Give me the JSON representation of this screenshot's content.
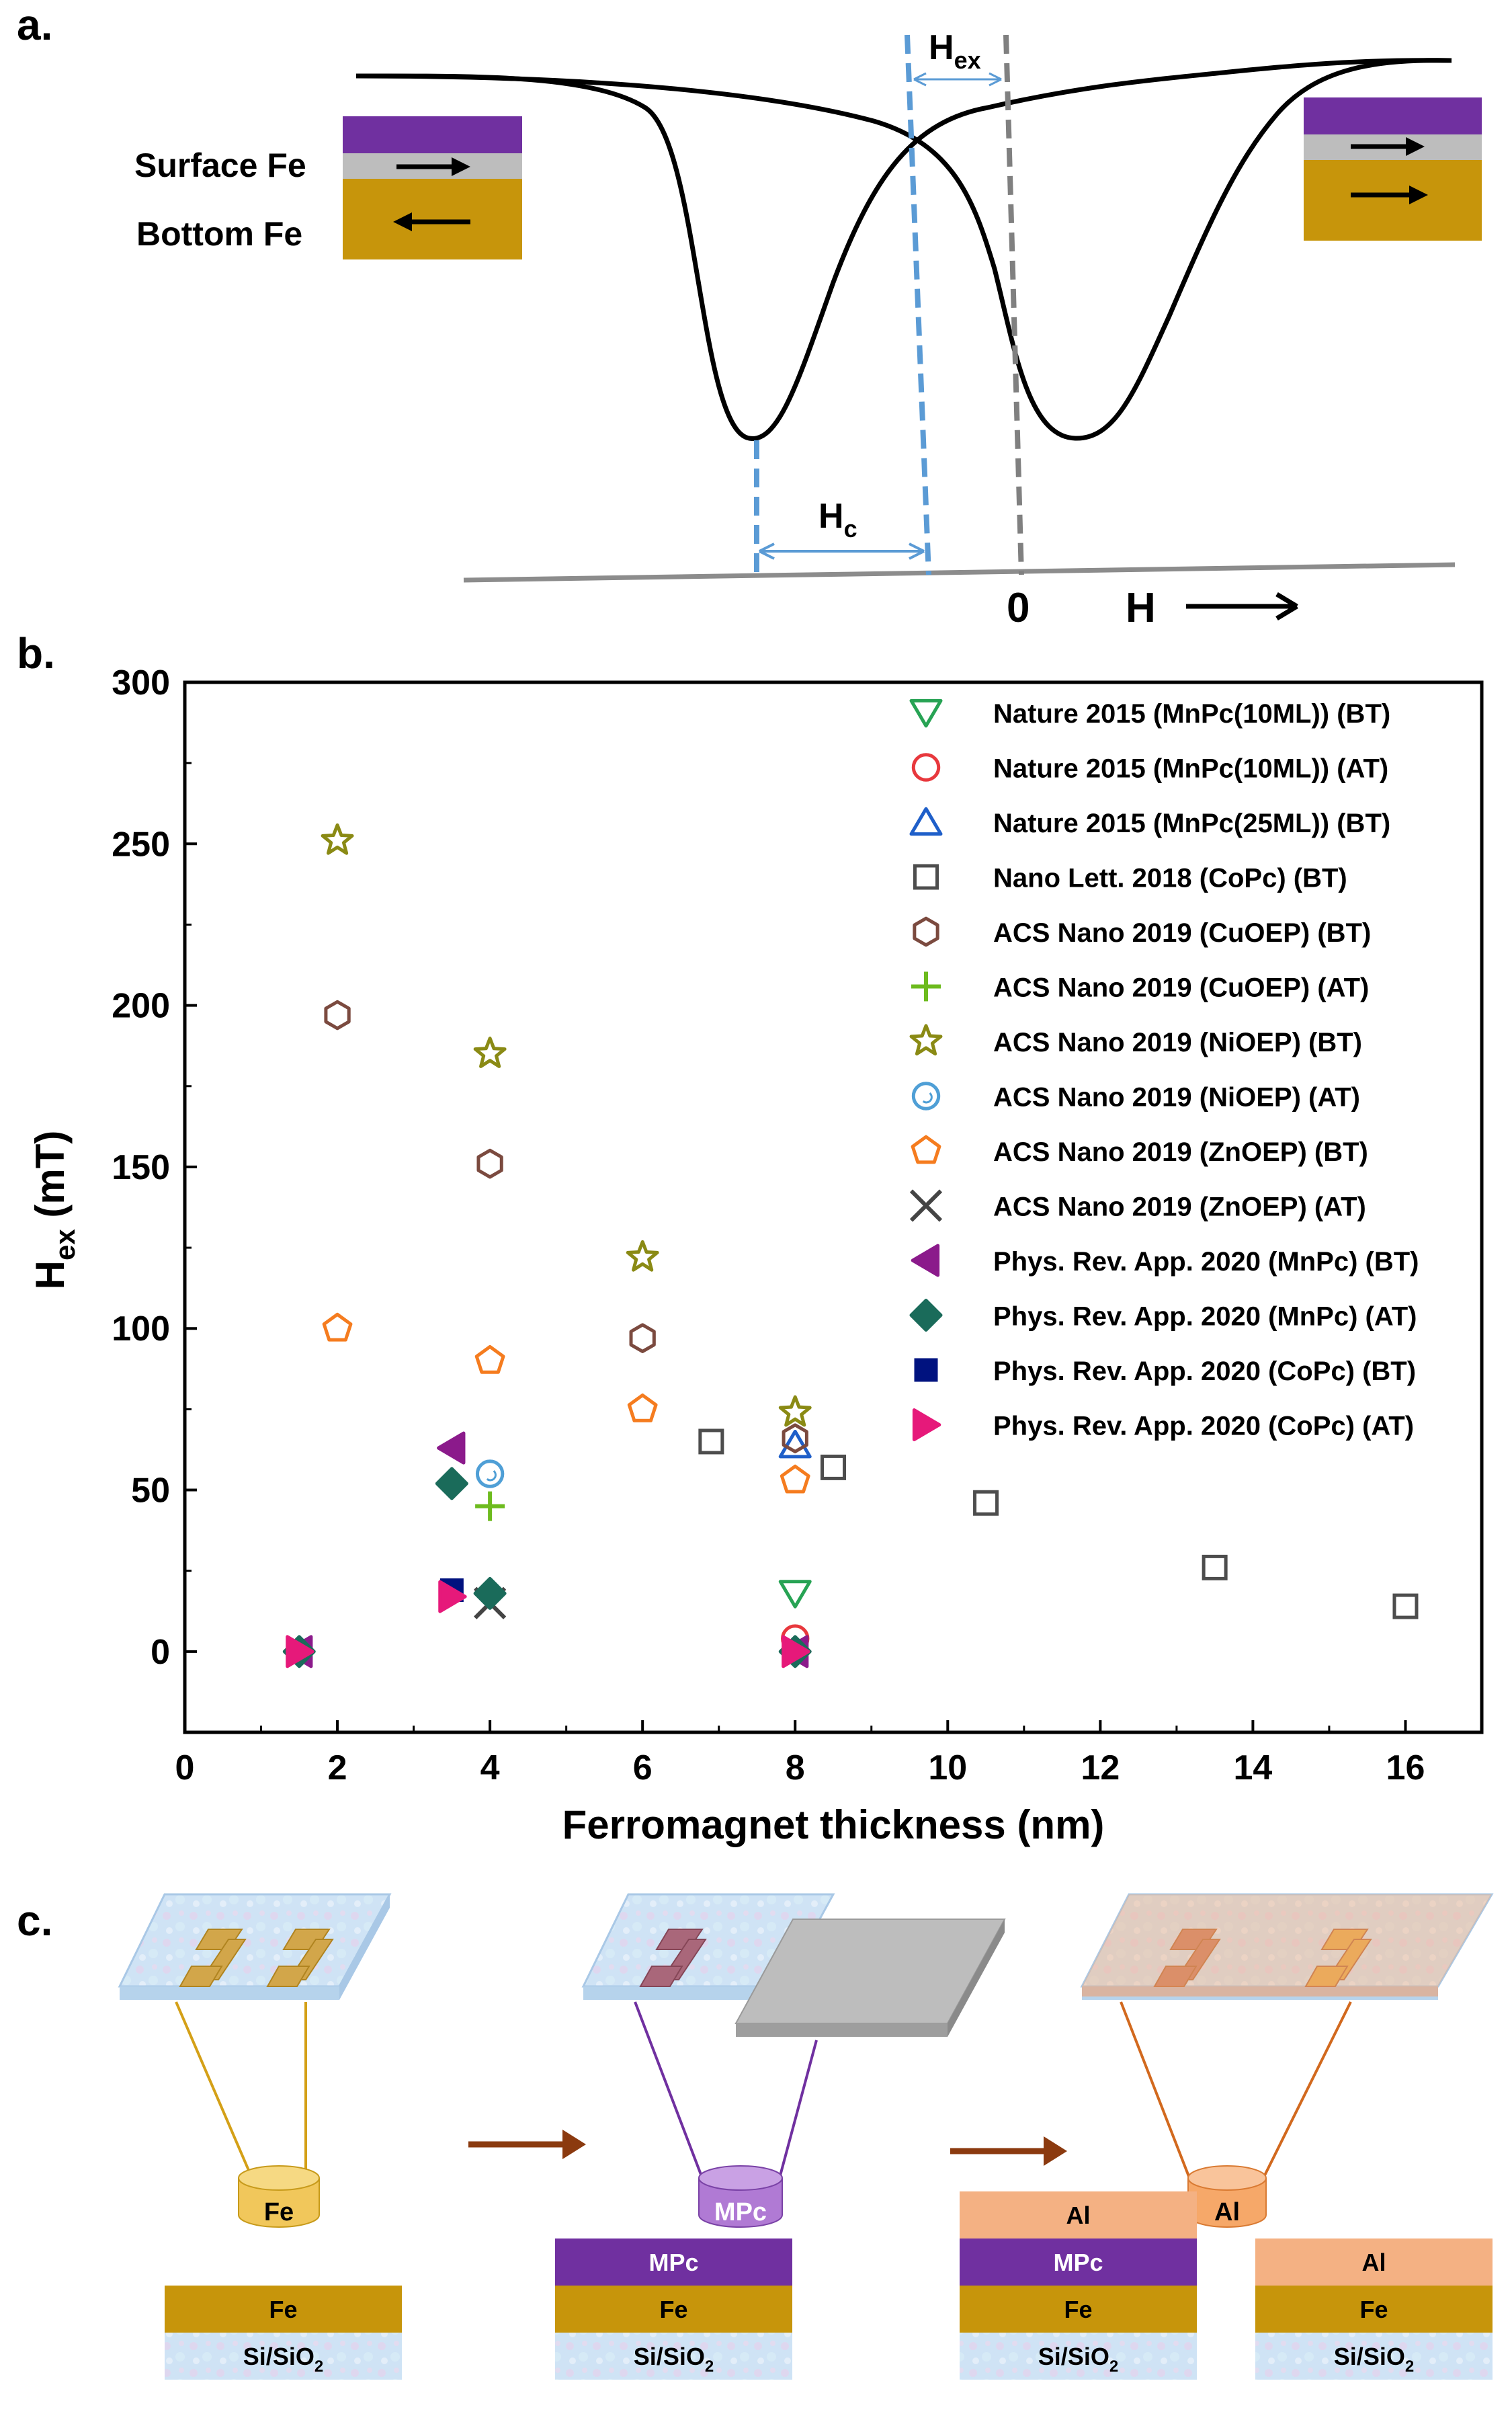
{
  "panels": {
    "a": {
      "label": "a.",
      "surface_label": "Surface Fe",
      "bottom_label": "Bottom Fe",
      "hex_main": "H",
      "hex_sub": "ex",
      "hc_main": "H",
      "hc_sub": "c",
      "zero": "0",
      "field": "H"
    },
    "b": {
      "label": "b."
    },
    "c": {
      "label": "c.",
      "sources": [
        "Fe",
        "MPc",
        "Al"
      ],
      "stacks": [
        {
          "layers": [
            "Fe",
            "Si/SiO"
          ]
        },
        {
          "layers": [
            "MPc",
            "Fe",
            "Si/SiO"
          ]
        },
        {
          "layers": [
            "Al",
            "MPc",
            "Fe",
            "Si/SiO"
          ]
        },
        {
          "layers": [
            "Al",
            "Fe",
            "Si/SiO"
          ]
        }
      ],
      "subscript": "2"
    }
  },
  "colors": {
    "fe": "#c7950b",
    "mpc": "#7030a0",
    "al": "#f4b183",
    "spacer": "#bdbdbd",
    "dash_blue": "#5b9bd5",
    "dash_gray": "#808080"
  },
  "chart_data": {
    "type": "scatter",
    "xlabel": "Ferromagnet thickness (nm)",
    "ylabel_main": "H",
    "ylabel_sub": "ex",
    "ylabel_unit": " (mT)",
    "xlim": [
      0,
      17
    ],
    "ylim": [
      -25,
      300
    ],
    "xticks": [
      0,
      2,
      4,
      6,
      8,
      10,
      12,
      14,
      16
    ],
    "yticks": [
      0,
      50,
      100,
      150,
      200,
      250,
      300
    ],
    "series": [
      {
        "name": "Nature 2015 (MnPc(10ML)) (BT)",
        "marker": "tri-down-open",
        "color": "#27a354",
        "points": [
          [
            8,
            18
          ]
        ]
      },
      {
        "name": "Nature 2015 (MnPc(10ML)) (AT)",
        "marker": "circle-open",
        "color": "#e8383d",
        "points": [
          [
            8,
            4
          ]
        ]
      },
      {
        "name": "Nature 2015 (MnPc(25ML)) (BT)",
        "marker": "tri-up-open",
        "color": "#1f5fc9",
        "points": [
          [
            8,
            64
          ]
        ]
      },
      {
        "name": "Nano Lett. 2018 (CoPc) (BT)",
        "marker": "square-open",
        "color": "#4d4d4d",
        "points": [
          [
            6.9,
            65
          ],
          [
            8.5,
            57
          ],
          [
            10.5,
            46
          ],
          [
            13.5,
            26
          ],
          [
            16,
            14
          ]
        ]
      },
      {
        "name": "ACS Nano 2019 (CuOEP) (BT)",
        "marker": "hexagon-open",
        "color": "#7b4a3f",
        "points": [
          [
            2,
            197
          ],
          [
            4,
            151
          ],
          [
            6,
            97
          ],
          [
            8,
            66
          ]
        ]
      },
      {
        "name": "ACS Nano 2019 (CuOEP) (AT)",
        "marker": "plus",
        "color": "#6dbb1e",
        "points": [
          [
            4,
            45
          ]
        ]
      },
      {
        "name": "ACS Nano 2019 (NiOEP) (BT)",
        "marker": "star-open",
        "color": "#8a8a14",
        "points": [
          [
            2,
            251
          ],
          [
            4,
            185
          ],
          [
            6,
            122
          ],
          [
            8,
            74
          ]
        ]
      },
      {
        "name": "ACS Nano 2019 (NiOEP) (AT)",
        "marker": "circle-open-thin",
        "color": "#4f9fd6",
        "points": [
          [
            4,
            55
          ]
        ]
      },
      {
        "name": "ACS Nano 2019 (ZnOEP) (BT)",
        "marker": "pentagon-open",
        "color": "#f57c1f",
        "points": [
          [
            2,
            100
          ],
          [
            4,
            90
          ],
          [
            6,
            75
          ],
          [
            8,
            53
          ]
        ]
      },
      {
        "name": "ACS Nano 2019 (ZnOEP) (AT)",
        "marker": "x",
        "color": "#444444",
        "points": [
          [
            4,
            15
          ]
        ]
      },
      {
        "name": "Phys. Rev. App. 2020 (MnPc) (BT)",
        "marker": "tri-left",
        "color": "#8b1a8b",
        "points": [
          [
            1.5,
            0
          ],
          [
            3.5,
            63
          ],
          [
            8,
            0
          ]
        ]
      },
      {
        "name": "Phys. Rev. App. 2020 (MnPc) (AT)",
        "marker": "diamond",
        "color": "#1a6b5a",
        "points": [
          [
            1.5,
            0
          ],
          [
            3.5,
            52
          ],
          [
            4,
            18
          ],
          [
            8,
            0
          ]
        ]
      },
      {
        "name": "Phys. Rev. App. 2020 (CoPc) (BT)",
        "marker": "square",
        "color": "#00127f",
        "points": [
          [
            3.5,
            19
          ]
        ]
      },
      {
        "name": "Phys. Rev. App. 2020 (CoPc) (AT)",
        "marker": "tri-right",
        "color": "#e6197a",
        "points": [
          [
            1.5,
            0
          ],
          [
            3.5,
            17
          ],
          [
            8,
            0
          ]
        ]
      }
    ]
  }
}
